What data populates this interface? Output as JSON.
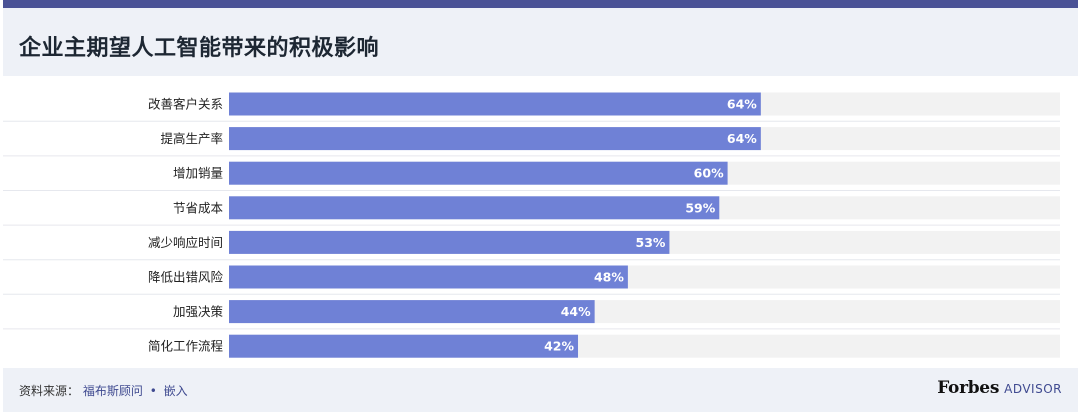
{
  "header": {
    "title": "企业主期望人工智能带来的积极影响"
  },
  "colors": {
    "bar": "#6f81d6",
    "track": "#f2f2f2",
    "accent_bar": "#4a5296",
    "link": "#3f4a90"
  },
  "chart_data": {
    "type": "bar",
    "orientation": "horizontal",
    "title": "企业主期望人工智能带来的积极影响",
    "categories": [
      "改善客户关系",
      "提高生产率",
      "增加销量",
      "节省成本",
      "减少响应时间",
      "降低出错风险",
      "加强决策",
      "简化工作流程"
    ],
    "values": [
      64,
      64,
      60,
      59,
      53,
      48,
      44,
      42
    ],
    "value_labels": [
      "64%",
      "64%",
      "60%",
      "59%",
      "53%",
      "48%",
      "44%",
      "42%"
    ],
    "xlim": [
      0,
      100
    ],
    "grid": false,
    "legend": "none"
  },
  "footer": {
    "source_label": "资料来源：",
    "source_link": "福布斯顾问",
    "separator": "•",
    "embed_link": "嵌入",
    "brand_name": "Forbes",
    "brand_suffix": "ADVISOR"
  }
}
